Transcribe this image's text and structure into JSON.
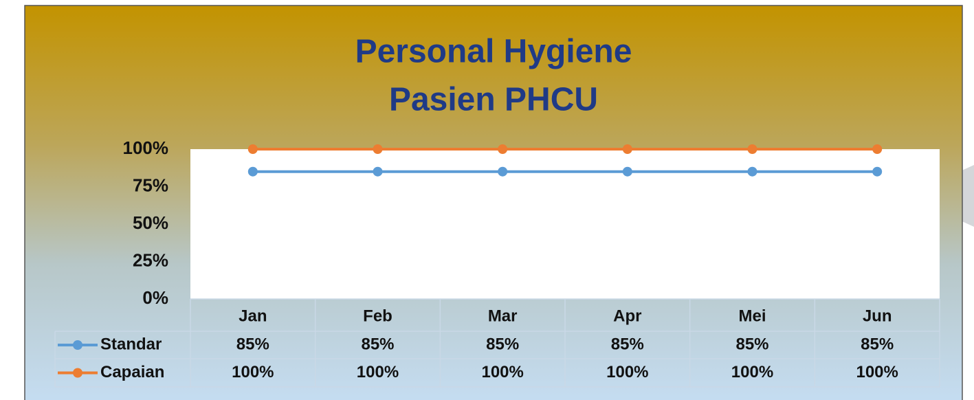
{
  "chart_data": {
    "type": "line",
    "title": [
      "Personal Hygiene",
      "Pasien PHCU"
    ],
    "categories": [
      "Jan",
      "Feb",
      "Mar",
      "Apr",
      "Mei",
      "Jun"
    ],
    "series": [
      {
        "name": "Standar",
        "color": "#5b9bd5",
        "values": [
          85,
          85,
          85,
          85,
          85,
          85
        ],
        "value_labels": [
          "85%",
          "85%",
          "85%",
          "85%",
          "85%",
          "85%"
        ]
      },
      {
        "name": "Capaian",
        "color": "#ed7d31",
        "values": [
          100,
          100,
          100,
          100,
          100,
          100
        ],
        "value_labels": [
          "100%",
          "100%",
          "100%",
          "100%",
          "100%",
          "100%"
        ]
      }
    ],
    "ylim": [
      0,
      100
    ],
    "yticks": [
      {
        "value": 0,
        "label": "0%"
      },
      {
        "value": 25,
        "label": "25%"
      },
      {
        "value": 50,
        "label": "50%"
      },
      {
        "value": 75,
        "label": "75%"
      },
      {
        "value": 100,
        "label": "100%"
      }
    ],
    "grid": false
  }
}
